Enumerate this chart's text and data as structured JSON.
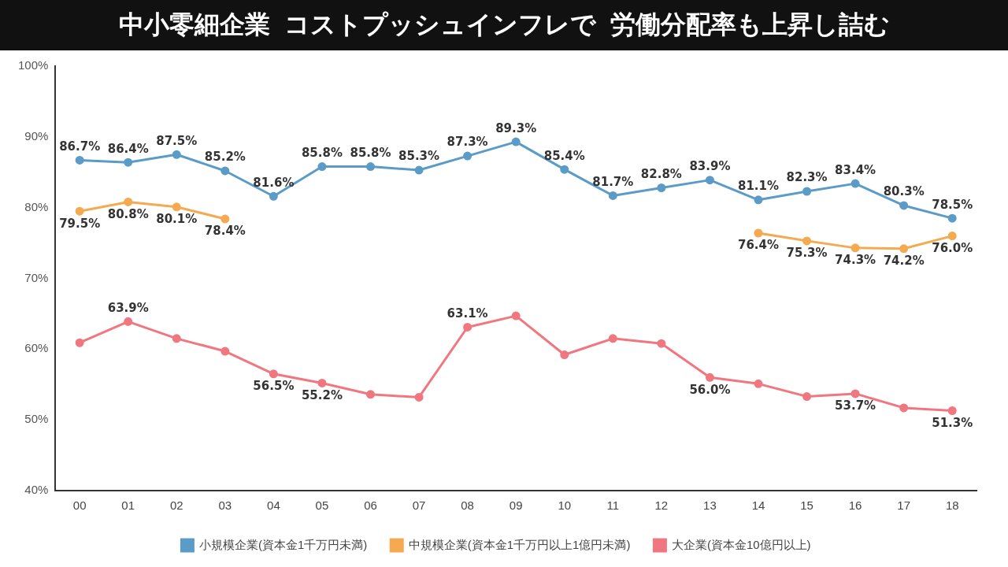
{
  "chart_data": {
    "type": "line",
    "title": "中小零細企業\nコストプッシュインフレで\n労働分配率も上昇し詰む",
    "categories": [
      "00",
      "01",
      "02",
      "03",
      "04",
      "05",
      "06",
      "07",
      "08",
      "09",
      "10",
      "11",
      "12",
      "13",
      "14",
      "15",
      "16",
      "17",
      "18"
    ],
    "series": [
      {
        "name": "小規模企業(資本金1千万円未満)",
        "color": "#5b9bc8",
        "values": [
          86.7,
          86.4,
          87.5,
          85.2,
          81.6,
          85.8,
          85.8,
          85.3,
          87.3,
          89.3,
          85.4,
          81.7,
          82.8,
          83.9,
          81.1,
          82.3,
          83.4,
          80.3,
          78.5
        ],
        "value_labels": [
          "86.7%",
          "86.4%",
          "87.5%",
          "85.2%",
          "81.6%",
          "85.8%",
          "85.8%",
          "85.3%",
          "87.3%",
          "89.3%",
          "85.4%",
          "81.7%",
          "82.8%",
          "83.9%",
          "81.1%",
          "82.3%",
          "83.4%",
          "80.3%",
          "78.5%"
        ]
      },
      {
        "name": "中規模企業(資本金1千万円以上1億円未満)",
        "color": "#f5a951",
        "values": [
          79.5,
          80.8,
          80.1,
          78.4,
          null,
          null,
          null,
          null,
          null,
          null,
          null,
          null,
          null,
          null,
          76.4,
          75.3,
          74.3,
          74.2,
          76.0
        ],
        "value_labels": [
          "79.5%",
          "80.8%",
          "80.1%",
          "78.4%",
          null,
          null,
          null,
          null,
          null,
          null,
          null,
          null,
          null,
          null,
          "76.4%",
          "75.3%",
          "74.3%",
          "74.2%",
          "76.0%"
        ]
      },
      {
        "name": "大企業(資本金10億円以上)",
        "color": "#f0777f",
        "values": [
          60.9,
          63.9,
          61.5,
          59.7,
          56.5,
          55.2,
          53.6,
          53.2,
          63.1,
          64.7,
          59.2,
          61.5,
          60.8,
          56.0,
          55.1,
          53.3,
          53.7,
          51.7,
          51.3
        ],
        "value_labels": [
          null,
          "63.9%",
          null,
          null,
          "56.5%",
          "55.2%",
          null,
          null,
          "63.1%",
          null,
          null,
          null,
          null,
          "56.0%",
          null,
          null,
          "53.7%",
          null,
          "51.3%"
        ]
      }
    ],
    "ylim": [
      40,
      100
    ],
    "yticks": [
      {
        "value": 40,
        "label": "40%"
      },
      {
        "value": 50,
        "label": "50%"
      },
      {
        "value": 60,
        "label": "60%"
      },
      {
        "value": 70,
        "label": "70%"
      },
      {
        "value": 80,
        "label": "80%"
      },
      {
        "value": 90,
        "label": "90%"
      },
      {
        "value": 100,
        "label": "100%"
      }
    ],
    "grid": false,
    "legend": "bottom",
    "marker": "circle",
    "line_style": "solid"
  }
}
